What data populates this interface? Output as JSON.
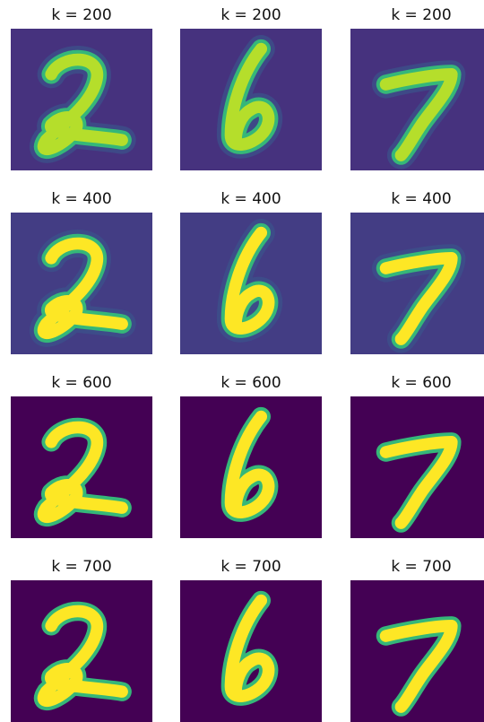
{
  "titles": [
    [
      "k = 200",
      "k = 200",
      "k = 200"
    ],
    [
      "k = 400",
      "k = 400",
      "k = 400"
    ],
    [
      "k = 600",
      "k = 600",
      "k = 600"
    ],
    [
      "k = 700",
      "k = 700",
      "k = 700"
    ]
  ]
}
